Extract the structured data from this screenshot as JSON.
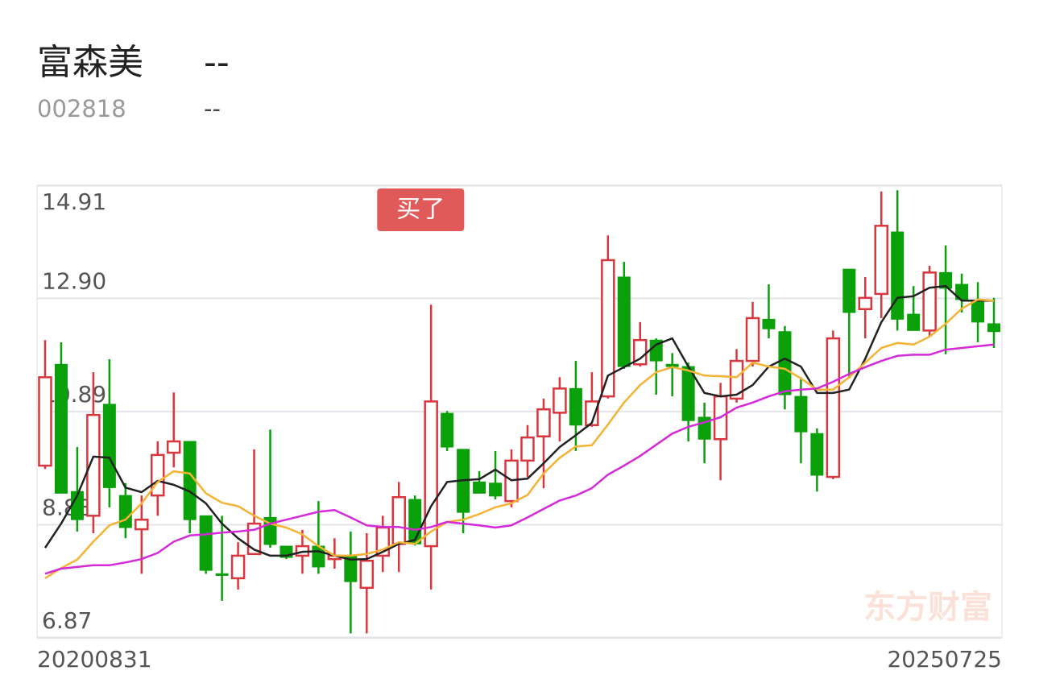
{
  "header": {
    "name": "富森美",
    "price": "--",
    "code": "002818",
    "change": "--"
  },
  "chart_data": {
    "type": "candlestick",
    "categories": [
      "20200831",
      null,
      null,
      null,
      null,
      null,
      null,
      null,
      null,
      null,
      null,
      null,
      null,
      null,
      null,
      null,
      null,
      null,
      null,
      null,
      null,
      null,
      null,
      null,
      null,
      null,
      null,
      null,
      null,
      null,
      null,
      null,
      null,
      null,
      null,
      null,
      null,
      null,
      null,
      null,
      null,
      null,
      null,
      null,
      null,
      null,
      null,
      null,
      null,
      null,
      null,
      null,
      null,
      null,
      null,
      null,
      null,
      null,
      null,
      "20250725"
    ],
    "open": [
      9.93,
      11.73,
      9.47,
      9.04,
      11.02,
      9.4,
      8.8,
      9.4,
      10.16,
      10.36,
      9.04,
      8.01,
      7.93,
      8.36,
      9.01,
      8.5,
      8.33,
      8.5,
      8.27,
      8.33,
      7.76,
      8.33,
      8.54,
      9.33,
      8.5,
      10.86,
      10.22,
      9.64,
      9.62,
      9.3,
      10.02,
      10.45,
      10.87,
      11.3,
      10.65,
      11.16,
      13.28,
      11.73,
      12.16,
      11.73,
      11.69,
      10.79,
      10.4,
      11.12,
      11.79,
      12.53,
      12.31,
      11.16,
      10.5,
      9.73,
      13.42,
      12.71,
      12.98,
      14.08,
      12.62,
      12.33,
      13.36,
      13.15,
      12.84,
      12.45
    ],
    "high": [
      12.16,
      12.12,
      10.26,
      11.59,
      11.82,
      9.62,
      9.4,
      10.36,
      11.23,
      10.36,
      9.04,
      9.04,
      8.57,
      10.22,
      10.57,
      8.5,
      8.79,
      9.3,
      8.64,
      8.76,
      8.73,
      9.04,
      9.64,
      9.4,
      12.79,
      10.9,
      10.22,
      9.83,
      10.19,
      10.22,
      10.65,
      11.12,
      11.5,
      11.79,
      11.59,
      14.02,
      13.55,
      12.48,
      12.19,
      11.93,
      11.76,
      11.05,
      11.4,
      12.0,
      12.84,
      13.15,
      12.41,
      11.5,
      10.59,
      12.33,
      13.42,
      13.28,
      14.8,
      14.82,
      13.12,
      13.48,
      13.84,
      13.34,
      13.19,
      12.91
    ],
    "low": [
      9.87,
      9.44,
      8.76,
      8.73,
      9.19,
      8.64,
      8.01,
      9.04,
      9.9,
      8.73,
      8.01,
      7.53,
      7.73,
      8.36,
      8.47,
      8.27,
      8.01,
      8.01,
      8.1,
      6.95,
      6.95,
      8.04,
      8.04,
      8.51,
      7.73,
      10.19,
      8.73,
      9.44,
      9.33,
      9.19,
      9.73,
      9.53,
      10.36,
      10.19,
      10.62,
      11.12,
      11.65,
      11.69,
      11.19,
      11.16,
      10.36,
      9.97,
      9.67,
      11.05,
      11.69,
      12.19,
      10.93,
      9.97,
      9.47,
      9.69,
      11.48,
      12.19,
      12.55,
      12.33,
      12.33,
      12.22,
      11.91,
      12.65,
      12.12,
      12.02
    ],
    "close": [
      11.5,
      9.44,
      8.97,
      10.83,
      9.54,
      8.83,
      8.97,
      10.12,
      10.36,
      8.97,
      8.07,
      7.98,
      8.33,
      8.9,
      8.53,
      8.3,
      8.5,
      8.13,
      8.33,
      7.87,
      8.24,
      8.83,
      9.37,
      8.54,
      11.07,
      10.26,
      9.1,
      9.44,
      9.39,
      10.02,
      10.43,
      10.93,
      11.3,
      10.65,
      11.07,
      13.58,
      11.69,
      12.16,
      11.79,
      11.69,
      10.73,
      10.4,
      11.16,
      11.79,
      12.55,
      12.36,
      11.19,
      10.53,
      9.76,
      12.19,
      12.65,
      12.91,
      14.19,
      12.53,
      12.33,
      13.36,
      13.08,
      12.88,
      12.48,
      12.31
    ],
    "up_color": "#d9363e",
    "down_color": "#0aa00a",
    "lines": [
      {
        "color": "#222222",
        "values": [
          8.47,
          8.9,
          9.4,
          10.09,
          10.07,
          9.54,
          9.46,
          9.66,
          9.59,
          9.47,
          9.26,
          8.9,
          8.64,
          8.44,
          8.33,
          8.33,
          8.4,
          8.41,
          8.33,
          8.26,
          8.27,
          8.4,
          8.54,
          8.61,
          9.21,
          9.64,
          9.67,
          9.69,
          9.86,
          9.67,
          9.7,
          9.97,
          10.26,
          10.47,
          10.69,
          11.53,
          11.68,
          11.83,
          12.08,
          12.19,
          11.69,
          11.22,
          11.16,
          11.19,
          11.36,
          11.69,
          11.83,
          11.69,
          11.22,
          11.22,
          11.28,
          11.83,
          12.48,
          12.91,
          12.94,
          13.09,
          13.12,
          12.86,
          12.86,
          12.86
        ]
      },
      {
        "color": "#f5b335",
        "values": [
          7.93,
          8.11,
          8.26,
          8.58,
          8.87,
          8.97,
          9.26,
          9.64,
          9.83,
          9.79,
          9.44,
          9.27,
          9.21,
          9.04,
          8.9,
          8.83,
          8.71,
          8.5,
          8.33,
          8.33,
          8.36,
          8.44,
          8.57,
          8.54,
          8.76,
          8.93,
          8.97,
          9.07,
          9.19,
          9.26,
          9.41,
          9.79,
          10.07,
          10.27,
          10.29,
          10.66,
          11.05,
          11.36,
          11.59,
          11.68,
          11.62,
          11.53,
          11.52,
          11.5,
          11.76,
          11.69,
          11.65,
          11.48,
          11.28,
          11.28,
          11.5,
          11.76,
          12.02,
          12.11,
          12.08,
          12.22,
          12.45,
          12.72,
          12.88,
          12.86
        ]
      },
      {
        "color": "#d42ad8",
        "values": [
          8.01,
          8.1,
          8.13,
          8.16,
          8.16,
          8.21,
          8.27,
          8.38,
          8.58,
          8.69,
          8.71,
          8.74,
          8.76,
          8.79,
          8.9,
          8.97,
          9.04,
          9.11,
          9.14,
          9.01,
          8.87,
          8.84,
          8.84,
          8.79,
          8.84,
          8.93,
          8.9,
          8.87,
          8.83,
          8.87,
          9.01,
          9.16,
          9.31,
          9.4,
          9.53,
          9.77,
          9.93,
          10.1,
          10.3,
          10.5,
          10.62,
          10.7,
          10.79,
          10.96,
          11.05,
          11.16,
          11.25,
          11.28,
          11.3,
          11.42,
          11.56,
          11.68,
          11.79,
          11.88,
          11.9,
          11.9,
          11.99,
          12.02,
          12.05,
          12.08
        ]
      }
    ],
    "ylim": [
      6.87,
      14.91
    ],
    "yticks": [
      6.87,
      8.88,
      10.89,
      {
        "value": 12.9,
        "label": "12.90"
      },
      14.91
    ],
    "grid": true,
    "annotation": "买了",
    "watermark": "东方财富"
  }
}
